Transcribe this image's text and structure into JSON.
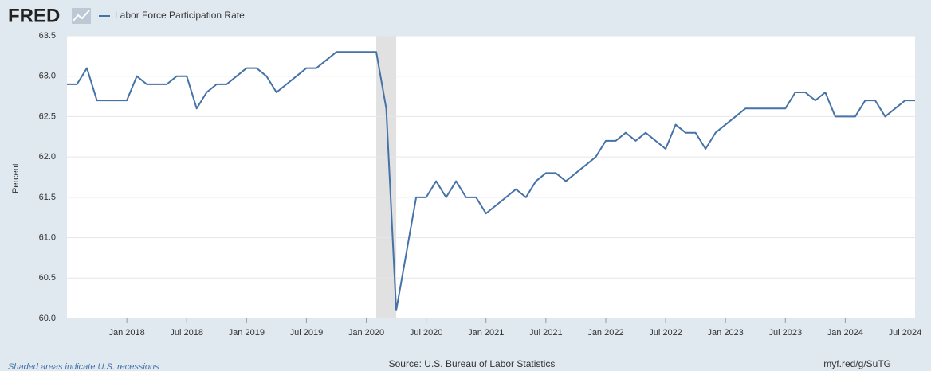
{
  "chart_data": {
    "type": "line",
    "brand": "FRED",
    "ylabel": "Percent",
    "note": "Shaded areas indicate U.S. recessions",
    "source": "Source: U.S. Bureau of Labor Statistics",
    "link": "myf.red/g/SuTG",
    "x": [
      "2017-07",
      "2017-08",
      "2017-09",
      "2017-10",
      "2017-11",
      "2017-12",
      "2018-01",
      "2018-02",
      "2018-03",
      "2018-04",
      "2018-05",
      "2018-06",
      "2018-07",
      "2018-08",
      "2018-09",
      "2018-10",
      "2018-11",
      "2018-12",
      "2019-01",
      "2019-02",
      "2019-03",
      "2019-04",
      "2019-05",
      "2019-06",
      "2019-07",
      "2019-08",
      "2019-09",
      "2019-10",
      "2019-11",
      "2019-12",
      "2020-01",
      "2020-02",
      "2020-03",
      "2020-04",
      "2020-05",
      "2020-06",
      "2020-07",
      "2020-08",
      "2020-09",
      "2020-10",
      "2020-11",
      "2020-12",
      "2021-01",
      "2021-02",
      "2021-03",
      "2021-04",
      "2021-05",
      "2021-06",
      "2021-07",
      "2021-08",
      "2021-09",
      "2021-10",
      "2021-11",
      "2021-12",
      "2022-01",
      "2022-02",
      "2022-03",
      "2022-04",
      "2022-05",
      "2022-06",
      "2022-07",
      "2022-08",
      "2022-09",
      "2022-10",
      "2022-11",
      "2022-12",
      "2023-01",
      "2023-02",
      "2023-03",
      "2023-04",
      "2023-05",
      "2023-06",
      "2023-07",
      "2023-08",
      "2023-09",
      "2023-10",
      "2023-11",
      "2023-12",
      "2024-01",
      "2024-02",
      "2024-03",
      "2024-04",
      "2024-05",
      "2024-06",
      "2024-07",
      "2024-08"
    ],
    "series": [
      {
        "name": "Labor Force Participation Rate",
        "color": "#4572a7",
        "values": [
          62.9,
          62.9,
          63.1,
          62.7,
          62.7,
          62.7,
          62.7,
          63.0,
          62.9,
          62.9,
          62.9,
          63.0,
          63.0,
          62.6,
          62.8,
          62.9,
          62.9,
          63.0,
          63.1,
          63.1,
          63.0,
          62.8,
          62.9,
          63.0,
          63.1,
          63.1,
          63.2,
          63.3,
          63.3,
          63.3,
          63.3,
          63.3,
          62.6,
          60.1,
          60.8,
          61.5,
          61.5,
          61.7,
          61.5,
          61.7,
          61.5,
          61.5,
          61.3,
          61.4,
          61.5,
          61.6,
          61.5,
          61.7,
          61.8,
          61.8,
          61.7,
          61.8,
          61.9,
          62.0,
          62.2,
          62.2,
          62.3,
          62.2,
          62.3,
          62.2,
          62.1,
          62.4,
          62.3,
          62.3,
          62.1,
          62.3,
          62.4,
          62.5,
          62.6,
          62.6,
          62.6,
          62.6,
          62.6,
          62.8,
          62.8,
          62.7,
          62.8,
          62.5,
          62.5,
          62.5,
          62.7,
          62.7,
          62.5,
          62.6,
          62.7,
          62.7
        ]
      }
    ],
    "recessions": [
      {
        "start": "2020-02",
        "end": "2020-04"
      }
    ],
    "xlim": [
      "2017-07",
      "2024-08"
    ],
    "xticks": [
      {
        "value": "2018-01",
        "label": "Jan 2018"
      },
      {
        "value": "2018-07",
        "label": "Jul 2018"
      },
      {
        "value": "2019-01",
        "label": "Jan 2019"
      },
      {
        "value": "2019-07",
        "label": "Jul 2019"
      },
      {
        "value": "2020-01",
        "label": "Jan 2020"
      },
      {
        "value": "2020-07",
        "label": "Jul 2020"
      },
      {
        "value": "2021-01",
        "label": "Jan 2021"
      },
      {
        "value": "2021-07",
        "label": "Jul 2021"
      },
      {
        "value": "2022-01",
        "label": "Jan 2022"
      },
      {
        "value": "2022-07",
        "label": "Jul 2022"
      },
      {
        "value": "2023-01",
        "label": "Jan 2023"
      },
      {
        "value": "2023-07",
        "label": "Jul 2023"
      },
      {
        "value": "2024-01",
        "label": "Jan 2024"
      },
      {
        "value": "2024-07",
        "label": "Jul 2024"
      }
    ],
    "ylim": [
      60.0,
      63.5
    ],
    "yticks": [
      {
        "value": 60.0,
        "label": "60.0"
      },
      {
        "value": 60.5,
        "label": "60.5"
      },
      {
        "value": 61.0,
        "label": "61.0"
      },
      {
        "value": 61.5,
        "label": "61.5"
      },
      {
        "value": 62.0,
        "label": "62.0"
      },
      {
        "value": 62.5,
        "label": "62.5"
      },
      {
        "value": 63.0,
        "label": "63.0"
      },
      {
        "value": 63.5,
        "label": "63.5"
      }
    ],
    "grid": true
  }
}
